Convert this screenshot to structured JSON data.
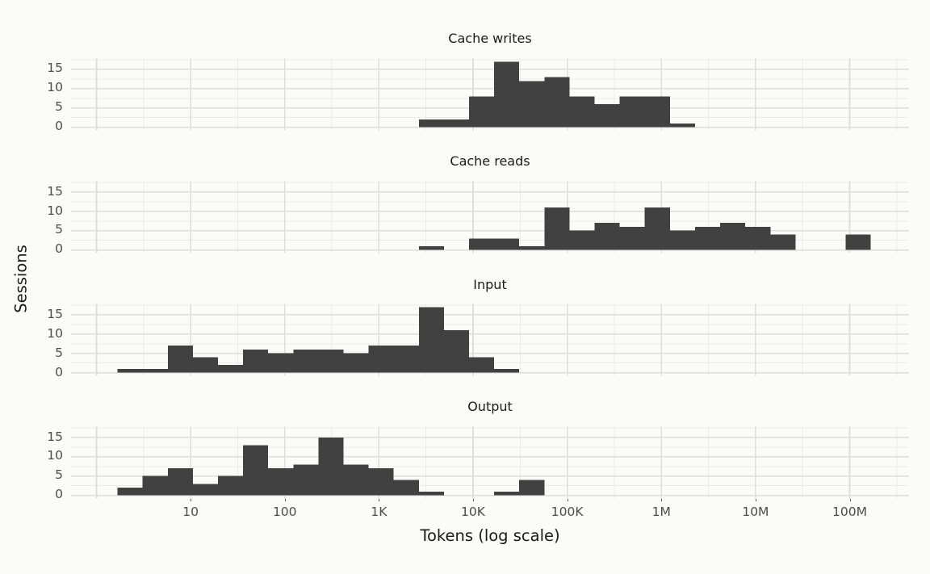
{
  "figure": {
    "background_color": "#fbfbf8",
    "bar_color": "#414141",
    "grid_major_color": "#dededa",
    "grid_minor_color": "#ebebe7",
    "axis_text_color": "#4d4d4d",
    "title_text_color": "#1a1a1a"
  },
  "chart_data": {
    "type": "bar",
    "subtype": "faceted-histogram",
    "xlabel": "Tokens (log scale)",
    "ylabel": "Sessions",
    "x_scale": "log10",
    "x_tick_labels": [
      "10",
      "100",
      "1K",
      "10K",
      "100K",
      "1M",
      "10M",
      "100M"
    ],
    "x_tick_values": [
      10,
      100,
      1000,
      10000,
      100000,
      1000000,
      10000000,
      100000000
    ],
    "y_tick_labels": [
      "0",
      "5",
      "10",
      "15"
    ],
    "y_tick_values": [
      0,
      5,
      10,
      15
    ],
    "y_minor_gridlines": [
      2.5,
      7.5,
      12.5,
      17.5
    ],
    "x_axis_range_log10": [
      -0.27,
      8.63
    ],
    "y_axis_range": [
      -0.85,
      17.85
    ],
    "grid": "on",
    "legend": "none",
    "bins": {
      "log10_start": 0.224,
      "log10_width": 0.26667,
      "count": 30,
      "first_bin_starts_at_tokens": 1.67,
      "last_bin_ends_at_tokens": 167000000
    },
    "facets": [
      {
        "title": "Cache writes",
        "counts": [
          0,
          0,
          0,
          0,
          0,
          0,
          0,
          0,
          0,
          0,
          0,
          0,
          2,
          2,
          8,
          17,
          12,
          13,
          8,
          6,
          8,
          8,
          1,
          0,
          0,
          0,
          0,
          0,
          0,
          0
        ]
      },
      {
        "title": "Cache reads",
        "counts": [
          0,
          0,
          0,
          0,
          0,
          0,
          0,
          0,
          0,
          0,
          0,
          0,
          1,
          0,
          3,
          3,
          1,
          11,
          5,
          7,
          6,
          11,
          5,
          6,
          7,
          6,
          4,
          0,
          0,
          4
        ]
      },
      {
        "title": "Input",
        "counts": [
          1,
          1,
          7,
          4,
          2,
          6,
          5,
          6,
          6,
          5,
          7,
          7,
          17,
          11,
          4,
          1,
          0,
          0,
          0,
          0,
          0,
          0,
          0,
          0,
          0,
          0,
          0,
          0,
          0,
          0
        ]
      },
      {
        "title": "Output",
        "counts": [
          2,
          5,
          7,
          3,
          5,
          13,
          7,
          8,
          15,
          8,
          7,
          4,
          1,
          0,
          0,
          1,
          4,
          0,
          0,
          0,
          0,
          0,
          0,
          0,
          0,
          0,
          0,
          0,
          0,
          0
        ]
      }
    ]
  }
}
